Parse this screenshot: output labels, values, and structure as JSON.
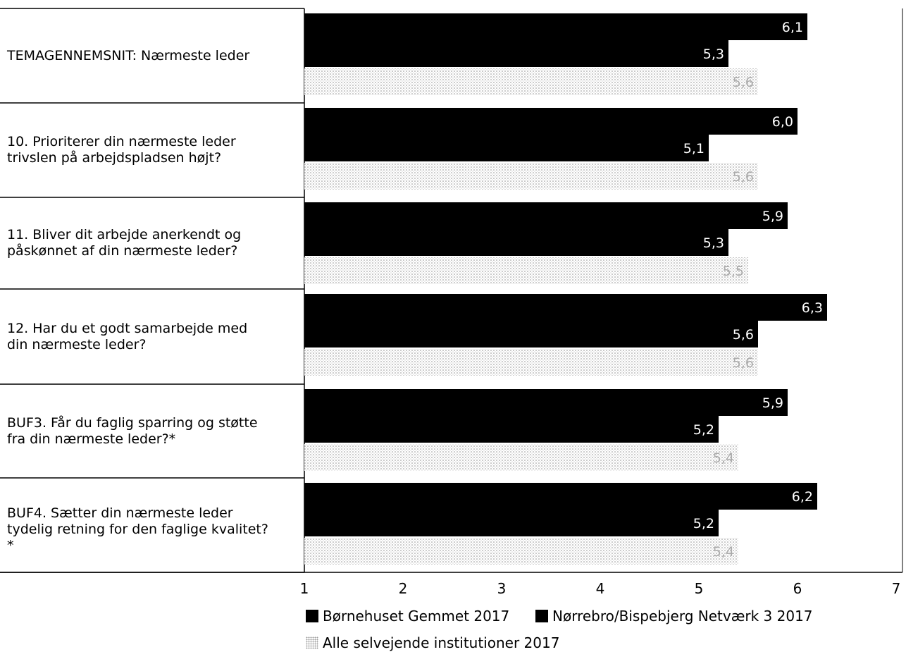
{
  "chart_data": {
    "type": "bar",
    "orientation": "horizontal",
    "categories": [
      "TEMAGENNEMSNIT: Nærmeste leder",
      "10. Prioriterer din nærmeste leder\ntrivslen på arbejdspladsen højt?",
      "11. Bliver dit arbejde anerkendt og\npåskønnet af din nærmeste leder?",
      "12. Har du et godt samarbejde med\ndin nærmeste leder?",
      "BUF3. Får du faglig sparring og støtte\nfra din nærmeste leder?*",
      "BUF4. Sætter din nærmeste leder\ntydelig retning for den faglige kvalitet?\n*"
    ],
    "series": [
      {
        "name": "Børnehuset Gemmet 2017",
        "values": [
          6.1,
          6.0,
          5.9,
          6.3,
          5.9,
          6.2
        ],
        "labels": [
          "6,1",
          "6,0",
          "5,9",
          "6,3",
          "5,9",
          "6,2"
        ],
        "color": "#000000"
      },
      {
        "name": "Nørrebro/Bispebjerg Netværk 3 2017",
        "values": [
          5.3,
          5.1,
          5.3,
          5.6,
          5.2,
          5.2
        ],
        "labels": [
          "5,3",
          "5,1",
          "5,3",
          "5,6",
          "5,2",
          "5,2"
        ],
        "color": "#000000"
      },
      {
        "name": "Alle selvejende institutioner 2017",
        "values": [
          5.6,
          5.6,
          5.5,
          5.6,
          5.4,
          5.4
        ],
        "labels": [
          "5,6",
          "5,6",
          "5,5",
          "5,6",
          "5,4",
          "5,4"
        ],
        "color": "#bdbdbd"
      }
    ],
    "xlim": [
      1,
      7
    ],
    "x_ticks": [
      "1",
      "2",
      "3",
      "4",
      "5",
      "6",
      "7"
    ],
    "grid": false,
    "legend_position": "bottom"
  }
}
